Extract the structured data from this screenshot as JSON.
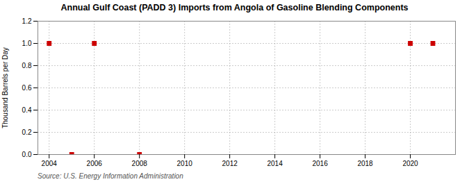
{
  "chart_data": {
    "type": "scatter",
    "title": "Annual Gulf Coast (PADD 3) Imports from Angola of Gasoline Blending Components",
    "ylabel": "Thousand Barrels per Day",
    "source": "Source: U.S. Energy Information Administration",
    "x": [
      2004,
      2005,
      2006,
      2008,
      2020,
      2021
    ],
    "values": [
      1.0,
      0.0,
      1.0,
      0.0,
      1.0,
      1.0
    ],
    "color": "#cc0000",
    "marker": "square",
    "xlim": [
      2003.5,
      2022
    ],
    "ylim": [
      0.0,
      1.2
    ],
    "xticks": [
      2004,
      2006,
      2008,
      2010,
      2012,
      2014,
      2016,
      2018,
      2020
    ],
    "yticks": [
      {
        "value": 0.0,
        "label": "0.0"
      },
      0.2,
      0.4,
      0.6,
      0.8,
      {
        "value": 1.0,
        "label": "1.0"
      },
      1.2
    ],
    "grid": true
  }
}
